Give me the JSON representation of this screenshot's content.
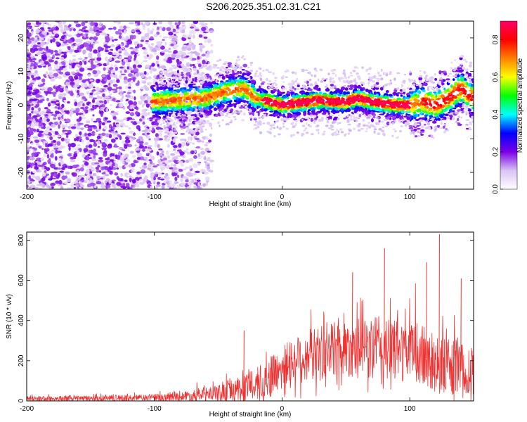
{
  "title": "S206.2025.351.02.31.C21",
  "chart_data": [
    {
      "type": "heatmap",
      "name": "spectrogram",
      "xlabel": "Height of straight line (km)",
      "ylabel": "Frequency (Hz)",
      "xlim": [
        -200,
        150
      ],
      "ylim": [
        -25,
        25
      ],
      "xticks": [
        -200,
        -100,
        0,
        100
      ],
      "yticks": [
        20,
        10,
        0,
        -10,
        -20
      ],
      "colorbar": {
        "label": "Normalized spectral amplitude",
        "range": [
          0.0,
          0.9
        ],
        "ticks": [
          0.0,
          0.2,
          0.4,
          0.6,
          0.8
        ],
        "colors": [
          "#ffffff",
          "#d9c2f5",
          "#7a00e6",
          "#0000ff",
          "#00ffff",
          "#00ff00",
          "#ffff00",
          "#ff8000",
          "#ff0000",
          "#ff0066"
        ]
      },
      "ridge": {
        "x": [
          -100,
          -80,
          -60,
          -45,
          -30,
          -20,
          -10,
          0,
          10,
          20,
          30,
          40,
          50,
          60,
          70,
          80,
          90,
          100,
          110,
          120,
          130,
          140,
          150
        ],
        "y": [
          1,
          1.5,
          2,
          4,
          5,
          2,
          1,
          0,
          0.5,
          1,
          1.5,
          1,
          1,
          2,
          1,
          0.5,
          0,
          0,
          1,
          0,
          2,
          5,
          2
        ]
      },
      "noise_region": [
        -200,
        -60
      ]
    },
    {
      "type": "line",
      "name": "snr",
      "xlabel": "Height of straight line (km)",
      "ylabel": "SNR (10 * v/v)",
      "xlim": [
        -200,
        150
      ],
      "ylim": [
        0,
        840
      ],
      "xticks": [
        -200,
        -100,
        0,
        100
      ],
      "yticks": [
        0,
        200,
        400,
        600,
        800
      ],
      "color": "#ee3333",
      "envelope": {
        "x": [
          -200,
          -150,
          -100,
          -70,
          -50,
          -30,
          -10,
          0,
          20,
          50,
          80,
          100,
          120,
          140,
          150
        ],
        "base": [
          10,
          12,
          15,
          25,
          35,
          60,
          110,
          170,
          230,
          270,
          260,
          250,
          190,
          150,
          140
        ],
        "amp": [
          22,
          25,
          30,
          45,
          70,
          120,
          160,
          180,
          220,
          250,
          270,
          260,
          260,
          230,
          210
        ]
      },
      "peaks": [
        {
          "x": -30,
          "y": 350
        },
        {
          "x": 55,
          "y": 640
        },
        {
          "x": 80,
          "y": 760
        },
        {
          "x": 113,
          "y": 690
        },
        {
          "x": 123,
          "y": 830
        },
        {
          "x": 140,
          "y": 610
        }
      ]
    }
  ]
}
